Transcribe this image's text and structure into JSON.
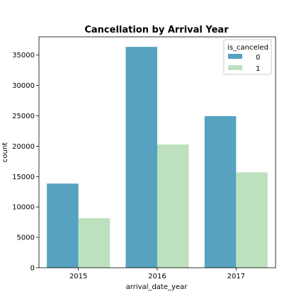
{
  "chart_data": {
    "type": "bar",
    "title": "Cancellation by Arrival Year",
    "xlabel": "arrival_date_year",
    "ylabel": "count",
    "categories": [
      "2015",
      "2016",
      "2017"
    ],
    "ylim": [
      0,
      38000
    ],
    "yticks": [
      0,
      5000,
      10000,
      15000,
      20000,
      25000,
      30000,
      35000
    ],
    "legend": {
      "title": "is_canceled",
      "placement": "top-right"
    },
    "series": [
      {
        "name": "0",
        "values": [
          13850,
          36350,
          24950
        ],
        "color": "#56a2c0"
      },
      {
        "name": "1",
        "values": [
          8150,
          20300,
          15700
        ],
        "color": "#bde1bf"
      }
    ],
    "grid": false
  }
}
